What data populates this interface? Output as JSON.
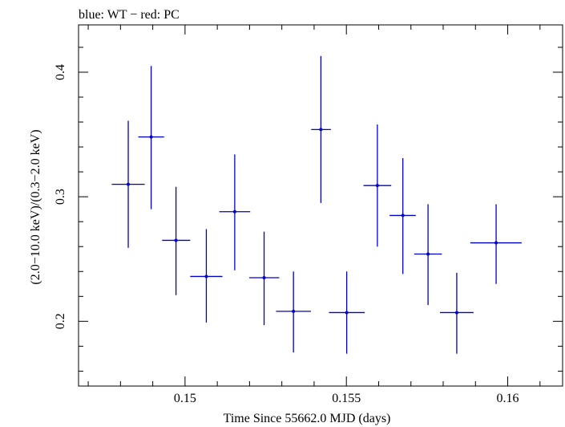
{
  "chart_data": {
    "type": "scatter",
    "title": "blue: WT − red: PC",
    "xlabel": "Time Since 55662.0 MJD (days)",
    "ylabel": "(2.0−10.0 keV)/(0.3−2.0 keV)",
    "xlim": [
      0.1467,
      0.1617
    ],
    "ylim": [
      0.148,
      0.438
    ],
    "x_ticks": [
      0.15,
      0.155,
      0.16
    ],
    "x_tick_labels": [
      "0.15",
      "0.155",
      "0.16"
    ],
    "y_ticks": [
      0.2,
      0.3,
      0.4
    ],
    "y_tick_labels": [
      "0.2",
      "0.3",
      "0.4"
    ],
    "grid": false,
    "series": [
      {
        "name": "WT",
        "color": "#0000cc",
        "points": [
          {
            "x": 0.14824,
            "xerr_lo": 0.14773,
            "xerr_hi": 0.14875,
            "y": 0.31,
            "yerr_lo": 0.259,
            "yerr_hi": 0.361
          },
          {
            "x": 0.14895,
            "xerr_lo": 0.14855,
            "xerr_hi": 0.14935,
            "y": 0.348,
            "yerr_lo": 0.29,
            "yerr_hi": 0.405
          },
          {
            "x": 0.14972,
            "xerr_lo": 0.14929,
            "xerr_hi": 0.15016,
            "y": 0.265,
            "yerr_lo": 0.221,
            "yerr_hi": 0.308
          },
          {
            "x": 0.15066,
            "xerr_lo": 0.15016,
            "xerr_hi": 0.15116,
            "y": 0.236,
            "yerr_lo": 0.199,
            "yerr_hi": 0.274
          },
          {
            "x": 0.15154,
            "xerr_lo": 0.15106,
            "xerr_hi": 0.15202,
            "y": 0.288,
            "yerr_lo": 0.241,
            "yerr_hi": 0.334
          },
          {
            "x": 0.15245,
            "xerr_lo": 0.15199,
            "xerr_hi": 0.15292,
            "y": 0.235,
            "yerr_lo": 0.197,
            "yerr_hi": 0.272
          },
          {
            "x": 0.15336,
            "xerr_lo": 0.15282,
            "xerr_hi": 0.1539,
            "y": 0.208,
            "yerr_lo": 0.175,
            "yerr_hi": 0.24
          },
          {
            "x": 0.15421,
            "xerr_lo": 0.15391,
            "xerr_hi": 0.15452,
            "y": 0.354,
            "yerr_lo": 0.295,
            "yerr_hi": 0.413
          },
          {
            "x": 0.15501,
            "xerr_lo": 0.15446,
            "xerr_hi": 0.15557,
            "y": 0.207,
            "yerr_lo": 0.174,
            "yerr_hi": 0.24
          },
          {
            "x": 0.15596,
            "xerr_lo": 0.15553,
            "xerr_hi": 0.15639,
            "y": 0.309,
            "yerr_lo": 0.26,
            "yerr_hi": 0.358
          },
          {
            "x": 0.15675,
            "xerr_lo": 0.15634,
            "xerr_hi": 0.15715,
            "y": 0.285,
            "yerr_lo": 0.238,
            "yerr_hi": 0.331
          },
          {
            "x": 0.15753,
            "xerr_lo": 0.1571,
            "xerr_hi": 0.15796,
            "y": 0.254,
            "yerr_lo": 0.213,
            "yerr_hi": 0.294
          },
          {
            "x": 0.15842,
            "xerr_lo": 0.1579,
            "xerr_hi": 0.15894,
            "y": 0.207,
            "yerr_lo": 0.174,
            "yerr_hi": 0.239
          },
          {
            "x": 0.15964,
            "xerr_lo": 0.15884,
            "xerr_hi": 0.16043,
            "y": 0.263,
            "yerr_lo": 0.23,
            "yerr_hi": 0.294
          }
        ]
      }
    ]
  }
}
